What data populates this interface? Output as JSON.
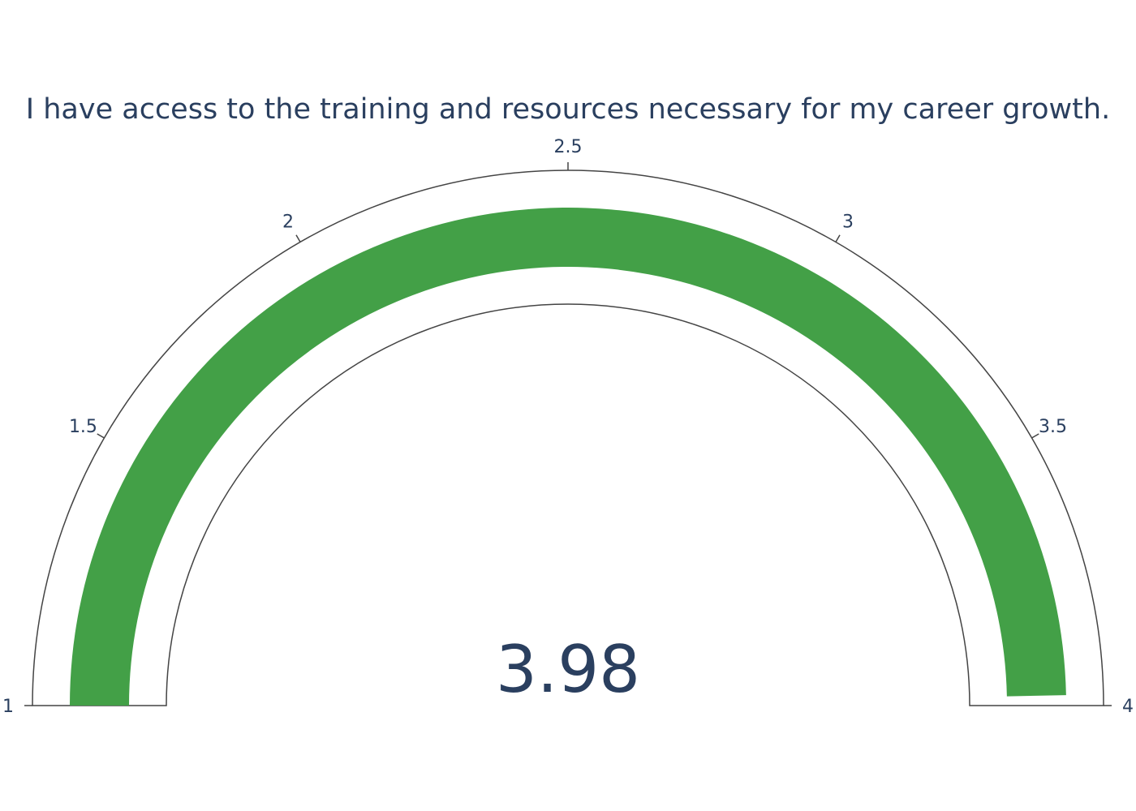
{
  "colors": {
    "text": "#2a3f5f",
    "bar": "#43a047",
    "outline": "#444444",
    "background": "#ffffff"
  },
  "chart_data": {
    "type": "gauge",
    "title": "I have access to the training and resources necessary for my career growth.",
    "value": 3.98,
    "value_label": "3.98",
    "range": [
      1,
      4
    ],
    "ticks": [
      1,
      1.5,
      2,
      2.5,
      3,
      3.5,
      4
    ],
    "tick_labels": [
      "1",
      "1.5",
      "2",
      "2.5",
      "3",
      "3.5",
      "4"
    ]
  }
}
